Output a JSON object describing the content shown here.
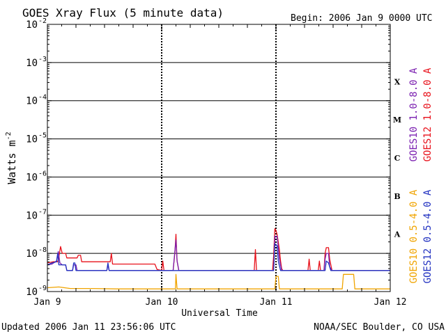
{
  "chart_data": {
    "type": "line",
    "title": "GOES Xray Flux (5 minute data)",
    "begin_label": "Begin:  2006 Jan 9 0000 UTC",
    "ylabel_main": "Watts m",
    "ylabel_sup": "-2",
    "xlabel": "Universal Time",
    "updated": "Updated 2006 Jan 11 23:56:06 UTC",
    "source": "NOAA/SEC Boulder, CO USA",
    "x_range_days": [
      0,
      3
    ],
    "x_ticks": [
      {
        "day": 0,
        "label": "Jan 9"
      },
      {
        "day": 1,
        "label": "Jan 10"
      },
      {
        "day": 2,
        "label": "Jan 11"
      },
      {
        "day": 3,
        "label": "Jan 12"
      }
    ],
    "yscale": "log",
    "ylim_exp": [
      -9,
      -2
    ],
    "y_ticks": [
      {
        "base": "10",
        "exp": "-2"
      },
      {
        "base": "10",
        "exp": "-3"
      },
      {
        "base": "10",
        "exp": "-4"
      },
      {
        "base": "10",
        "exp": "-5"
      },
      {
        "base": "10",
        "exp": "-6"
      },
      {
        "base": "10",
        "exp": "-7"
      },
      {
        "base": "10",
        "exp": "-8"
      },
      {
        "base": "10",
        "exp": "-9"
      }
    ],
    "class_labels": [
      {
        "label": "X",
        "exp": -3.5
      },
      {
        "label": "M",
        "exp": -4.5
      },
      {
        "label": "C",
        "exp": -5.5
      },
      {
        "label": "B",
        "exp": -6.5
      },
      {
        "label": "A",
        "exp": -7.5
      }
    ],
    "legend_right_upper": [
      {
        "text": "GOES10 1.0-8.0 A",
        "color": "#7a1fb0"
      },
      {
        "text": "GOES12 1.0-8.0 A",
        "color": "#e8101a"
      }
    ],
    "legend_right_lower": [
      {
        "text": "GOES10 0.5-4.0 A",
        "color": "#f0a400"
      },
      {
        "text": "GOES12 0.5-4.0 A",
        "color": "#2030c0"
      }
    ],
    "series": [
      {
        "name": "GOES12 1.0-8.0 A",
        "color": "#e8101a",
        "points": [
          [
            0,
            -8.25
          ],
          [
            0.05,
            -8.22
          ],
          [
            0.09,
            -8.22
          ],
          [
            0.1,
            -8.1
          ],
          [
            0.115,
            -7.82
          ],
          [
            0.13,
            -8.0
          ],
          [
            0.16,
            -8.0
          ],
          [
            0.17,
            -8.12
          ],
          [
            0.26,
            -8.12
          ],
          [
            0.27,
            -8.05
          ],
          [
            0.29,
            -8.05
          ],
          [
            0.3,
            -8.22
          ],
          [
            0.55,
            -8.22
          ],
          [
            0.56,
            -8.0
          ],
          [
            0.57,
            -8.28
          ],
          [
            0.94,
            -8.28
          ],
          [
            0.96,
            -8.42
          ],
          [
            1.0,
            -8.45
          ],
          [
            1.01,
            -8.2
          ],
          [
            1.02,
            -8.45
          ],
          [
            1.1,
            -8.45
          ],
          [
            1.115,
            -8.0
          ],
          [
            1.125,
            -7.5
          ],
          [
            1.135,
            -8.2
          ],
          [
            1.15,
            -8.45
          ],
          [
            1.7,
            -8.45
          ],
          [
            1.81,
            -8.45
          ],
          [
            1.82,
            -7.9
          ],
          [
            1.83,
            -8.45
          ],
          [
            1.97,
            -8.45
          ],
          [
            1.98,
            -8.05
          ],
          [
            1.99,
            -7.35
          ],
          [
            2.0,
            -7.4
          ],
          [
            2.01,
            -7.5
          ],
          [
            2.02,
            -7.7
          ],
          [
            2.03,
            -7.9
          ],
          [
            2.04,
            -8.2
          ],
          [
            2.05,
            -8.4
          ],
          [
            2.06,
            -8.45
          ],
          [
            2.28,
            -8.45
          ],
          [
            2.29,
            -8.15
          ],
          [
            2.3,
            -8.45
          ],
          [
            2.37,
            -8.45
          ],
          [
            2.38,
            -8.2
          ],
          [
            2.39,
            -8.45
          ],
          [
            2.42,
            -8.45
          ],
          [
            2.43,
            -8.0
          ],
          [
            2.44,
            -7.85
          ],
          [
            2.46,
            -7.85
          ],
          [
            2.47,
            -8.15
          ],
          [
            2.49,
            -8.45
          ],
          [
            3.0,
            -8.45
          ]
        ]
      },
      {
        "name": "GOES10 1.0-8.0 A",
        "color": "#7a1fb0",
        "points": [
          [
            0,
            -8.3
          ],
          [
            0.04,
            -8.28
          ],
          [
            0.08,
            -8.2
          ],
          [
            0.095,
            -7.95
          ],
          [
            0.11,
            -8.25
          ],
          [
            0.13,
            -8.3
          ],
          [
            0.16,
            -8.3
          ],
          [
            0.17,
            -8.45
          ],
          [
            0.22,
            -8.45
          ],
          [
            0.23,
            -8.3
          ],
          [
            0.25,
            -8.3
          ],
          [
            0.26,
            -8.45
          ],
          [
            0.52,
            -8.45
          ],
          [
            0.53,
            -8.3
          ],
          [
            0.54,
            -8.45
          ],
          [
            1.1,
            -8.45
          ],
          [
            1.115,
            -7.95
          ],
          [
            1.125,
            -7.65
          ],
          [
            1.135,
            -8.2
          ],
          [
            1.15,
            -8.45
          ],
          [
            1.98,
            -8.45
          ],
          [
            1.99,
            -7.55
          ],
          [
            2.01,
            -7.55
          ],
          [
            2.02,
            -7.85
          ],
          [
            2.03,
            -8.15
          ],
          [
            2.05,
            -8.45
          ],
          [
            2.42,
            -8.45
          ],
          [
            2.43,
            -8.15
          ],
          [
            2.44,
            -8.0
          ],
          [
            2.46,
            -8.0
          ],
          [
            2.47,
            -8.35
          ],
          [
            2.49,
            -8.45
          ],
          [
            3.0,
            -8.45
          ]
        ]
      },
      {
        "name": "GOES12 0.5-4.0 A",
        "color": "#2030c0",
        "points": [
          [
            0,
            -8.3
          ],
          [
            0.04,
            -8.25
          ],
          [
            0.08,
            -8.22
          ],
          [
            0.09,
            -8.0
          ],
          [
            0.1,
            -8.3
          ],
          [
            0.13,
            -8.3
          ],
          [
            0.16,
            -8.3
          ],
          [
            0.17,
            -8.45
          ],
          [
            0.22,
            -8.45
          ],
          [
            0.23,
            -8.25
          ],
          [
            0.24,
            -8.25
          ],
          [
            0.25,
            -8.45
          ],
          [
            0.52,
            -8.45
          ],
          [
            0.53,
            -8.25
          ],
          [
            0.54,
            -8.45
          ],
          [
            1.98,
            -8.45
          ],
          [
            1.99,
            -7.75
          ],
          [
            2.01,
            -7.8
          ],
          [
            2.02,
            -8.2
          ],
          [
            2.04,
            -8.45
          ],
          [
            2.43,
            -8.45
          ],
          [
            2.44,
            -8.2
          ],
          [
            2.46,
            -8.25
          ],
          [
            2.48,
            -8.45
          ],
          [
            3.0,
            -8.45
          ]
        ]
      },
      {
        "name": "GOES10 0.5-4.0 A",
        "color": "#f0a400",
        "points": [
          [
            0,
            -8.9
          ],
          [
            0.1,
            -8.88
          ],
          [
            0.2,
            -8.92
          ],
          [
            0.4,
            -8.92
          ],
          [
            0.6,
            -8.93
          ],
          [
            0.9,
            -8.93
          ],
          [
            1.12,
            -8.93
          ],
          [
            1.125,
            -8.55
          ],
          [
            1.135,
            -8.93
          ],
          [
            1.8,
            -8.93
          ],
          [
            1.99,
            -8.93
          ],
          [
            2.0,
            -8.6
          ],
          [
            2.02,
            -8.6
          ],
          [
            2.03,
            -8.93
          ],
          [
            2.58,
            -8.93
          ],
          [
            2.59,
            -8.55
          ],
          [
            2.68,
            -8.55
          ],
          [
            2.69,
            -8.93
          ],
          [
            3.0,
            -8.93
          ]
        ]
      }
    ]
  }
}
